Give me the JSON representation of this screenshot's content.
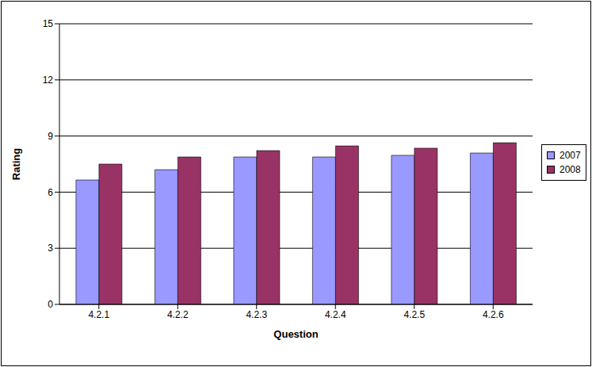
{
  "chart_data": {
    "type": "bar",
    "x_label": "Question",
    "y_label": "Rating",
    "categories": [
      "4.2.1",
      "4.2.2",
      "4.2.3",
      "4.2.4",
      "4.2.5",
      "4.2.6"
    ],
    "series": [
      {
        "name": "2007",
        "color": "#9999ff",
        "values": [
          6.65,
          7.2,
          7.88,
          7.88,
          7.97,
          8.09
        ]
      },
      {
        "name": "2008",
        "color": "#993366",
        "values": [
          7.5,
          7.88,
          8.22,
          8.47,
          8.35,
          8.64
        ]
      }
    ],
    "ylim": [
      0,
      15
    ],
    "yticks": [
      0,
      3,
      6,
      9,
      12,
      15
    ],
    "grid": true,
    "legend": "right"
  }
}
